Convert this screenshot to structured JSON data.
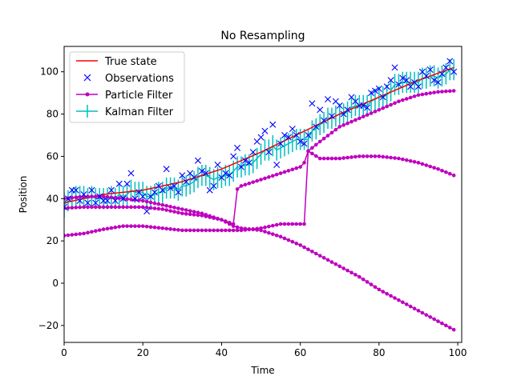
{
  "chart_data": {
    "type": "line",
    "title": "No Resampling",
    "xlabel": "Time",
    "ylabel": "Position",
    "xlim": [
      0,
      101
    ],
    "ylim": [
      -28,
      112
    ],
    "xticks": [
      0,
      20,
      40,
      60,
      80,
      100
    ],
    "yticks": [
      -20,
      0,
      20,
      40,
      60,
      80,
      100
    ],
    "grid": false,
    "legend_position": "upper-left",
    "legend": [
      "True state",
      "Observations",
      "Particle Filter",
      "Kalman Filter"
    ],
    "colors": {
      "true_state": "#ff0000",
      "observations": "#0000ff",
      "particle_filter": "#bf00bf",
      "kalman_filter": "#00bfbf"
    },
    "series": [
      {
        "name": "True state",
        "kind": "line",
        "x": [
          0,
          10,
          20,
          30,
          40,
          50,
          60,
          70,
          80,
          90,
          99
        ],
        "y": [
          38,
          42,
          44,
          48,
          54,
          62,
          71,
          80,
          88,
          96,
          102
        ]
      },
      {
        "name": "Observations",
        "kind": "markers",
        "x": [
          0,
          1,
          2,
          3,
          4,
          5,
          6,
          7,
          8,
          9,
          10,
          11,
          12,
          13,
          14,
          15,
          16,
          17,
          18,
          19,
          20,
          21,
          22,
          23,
          24,
          25,
          26,
          27,
          28,
          29,
          30,
          31,
          32,
          33,
          34,
          35,
          36,
          37,
          38,
          39,
          40,
          41,
          42,
          43,
          44,
          45,
          46,
          47,
          48,
          49,
          50,
          51,
          52,
          53,
          54,
          55,
          56,
          57,
          58,
          59,
          60,
          61,
          62,
          63,
          64,
          65,
          66,
          67,
          68,
          69,
          70,
          71,
          72,
          73,
          74,
          75,
          76,
          77,
          78,
          79,
          80,
          81,
          82,
          83,
          84,
          85,
          86,
          87,
          88,
          89,
          90,
          91,
          92,
          93,
          94,
          95,
          96,
          97,
          98,
          99
        ],
        "y": [
          36,
          40,
          44,
          44,
          39,
          42,
          38,
          44,
          38,
          41,
          39,
          39,
          44,
          39,
          47,
          40,
          47,
          52,
          40,
          43,
          41,
          34,
          41,
          43,
          46,
          44,
          54,
          45,
          46,
          43,
          51,
          48,
          52,
          50,
          58,
          53,
          52,
          44,
          46,
          56,
          50,
          52,
          51,
          60,
          64,
          55,
          58,
          57,
          62,
          67,
          69,
          72,
          62,
          75,
          56,
          66,
          70,
          69,
          73,
          70,
          67,
          66,
          70,
          85,
          74,
          82,
          77,
          87,
          79,
          86,
          84,
          80,
          82,
          88,
          86,
          84,
          84,
          83,
          90,
          91,
          92,
          88,
          93,
          96,
          102,
          94,
          97,
          96,
          93,
          95,
          93,
          100,
          98,
          101,
          96,
          95,
          99,
          102,
          105,
          100
        ]
      },
      {
        "name": "Particle Filter",
        "kind": "line-markers",
        "particles": [
          {
            "x": [
              0,
              5,
              10,
              15,
              20,
              25,
              30,
              35,
              40,
              43,
              44,
              45,
              50,
              55,
              60,
              61,
              62,
              63,
              65,
              70,
              75,
              80,
              85,
              90,
              95,
              99
            ],
            "y": [
              40,
              41,
              41,
              40,
              39,
              37,
              35,
              33,
              30,
              28,
              44.5,
              46,
              49,
              52,
              55,
              57,
              62.5,
              64,
              67,
              74,
              78,
              82,
              86,
              89,
              90.5,
              91
            ]
          },
          {
            "x": [
              0,
              5,
              10,
              15,
              20,
              25,
              30,
              35,
              40,
              45,
              50,
              55,
              60,
              61,
              62,
              65,
              70,
              75,
              80,
              85,
              90,
              95,
              99
            ],
            "y": [
              22.5,
              23.5,
              25.5,
              27,
              27,
              26,
              25,
              25,
              25,
              25,
              26,
              28,
              28,
              28,
              62.5,
              59,
              59,
              60,
              60,
              59,
              57,
              54,
              51
            ]
          },
          {
            "x": [
              0,
              5,
              10,
              15,
              20,
              25,
              30,
              35,
              40,
              43,
              45,
              50,
              55,
              60,
              65,
              70,
              75,
              80,
              85,
              90,
              95,
              99
            ],
            "y": [
              35.5,
              36,
              36,
              36,
              36,
              35,
              33,
              32,
              30,
              27,
              26,
              25,
              22,
              18,
              13,
              8,
              3,
              -3,
              -8,
              -13,
              -18,
              -22
            ]
          }
        ]
      },
      {
        "name": "Kalman Filter",
        "kind": "errorbar",
        "x": [
          0,
          1,
          2,
          3,
          4,
          5,
          6,
          7,
          8,
          9,
          10,
          11,
          12,
          13,
          14,
          15,
          16,
          17,
          18,
          19,
          20,
          21,
          22,
          23,
          24,
          25,
          26,
          27,
          28,
          29,
          30,
          31,
          32,
          33,
          34,
          35,
          36,
          37,
          38,
          39,
          40,
          41,
          42,
          43,
          44,
          45,
          46,
          47,
          48,
          49,
          50,
          51,
          52,
          53,
          54,
          55,
          56,
          57,
          58,
          59,
          60,
          61,
          62,
          63,
          64,
          65,
          66,
          67,
          68,
          69,
          70,
          71,
          72,
          73,
          74,
          75,
          76,
          77,
          78,
          79,
          80,
          81,
          82,
          83,
          84,
          85,
          86,
          87,
          88,
          89,
          90,
          91,
          92,
          93,
          94,
          95,
          96,
          97,
          98,
          99
        ],
        "y": [
          37,
          39,
          40,
          41,
          41,
          41,
          40,
          41,
          40,
          40,
          40,
          40,
          41,
          40,
          42,
          41,
          42,
          44,
          43,
          43,
          43,
          41,
          41,
          42,
          43,
          43,
          45,
          45,
          45,
          44,
          46,
          46,
          47,
          48,
          50,
          51,
          51,
          50,
          49,
          50,
          50,
          51,
          51,
          53,
          55,
          55,
          56,
          56,
          57,
          59,
          61,
          63,
          63,
          65,
          63,
          64,
          65,
          66,
          67,
          68,
          68,
          68,
          68,
          72,
          73,
          75,
          76,
          78,
          78,
          79,
          80,
          80,
          81,
          83,
          84,
          84,
          84,
          84,
          86,
          87,
          88,
          88,
          89,
          91,
          94,
          94,
          95,
          95,
          95,
          95,
          95,
          97,
          97,
          98,
          98,
          97,
          98,
          99,
          101,
          101
        ],
        "err": [
          6,
          5,
          5,
          5,
          5,
          5,
          5,
          5,
          5,
          5,
          5,
          5,
          5,
          5,
          5,
          5,
          5,
          5,
          5,
          5,
          5,
          5,
          5,
          5,
          5,
          5,
          5,
          5,
          5,
          5,
          5,
          5,
          5,
          5,
          5,
          5,
          5,
          5,
          5,
          5,
          5,
          5,
          5,
          5,
          5,
          5,
          5,
          5,
          5,
          5,
          5,
          5,
          5,
          5,
          5,
          5,
          5,
          5,
          5,
          5,
          5,
          5,
          5,
          5,
          5,
          5,
          5,
          5,
          5,
          5,
          5,
          5,
          5,
          5,
          5,
          5,
          5,
          5,
          5,
          5,
          5,
          5,
          5,
          5,
          5,
          5,
          5,
          5,
          5,
          5,
          5,
          5,
          5,
          5,
          5,
          5,
          5,
          5,
          5,
          5
        ]
      }
    ]
  }
}
